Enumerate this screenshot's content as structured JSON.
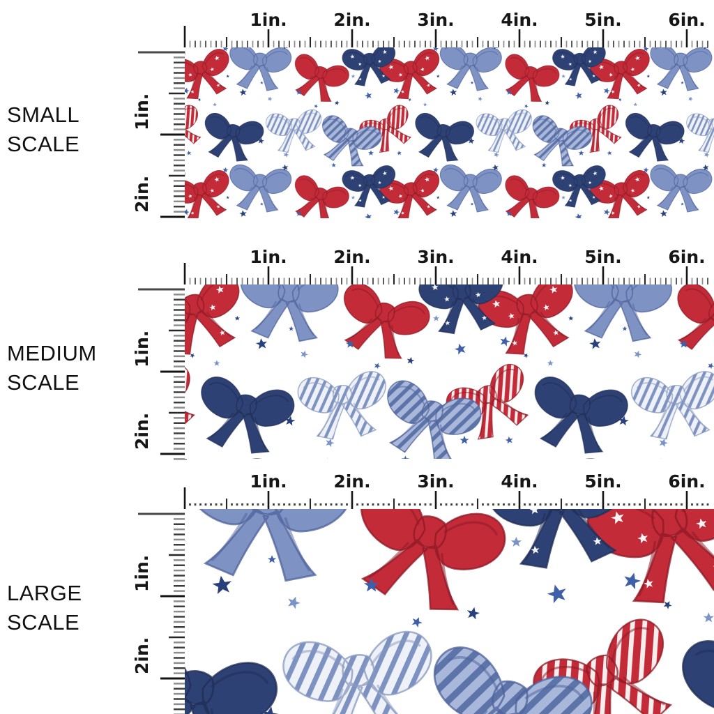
{
  "page": {
    "background": "#ffffff",
    "description": "Fabric pattern scale comparison chart with three swatches of a patriotic bows-and-stars print shown at small, medium and large scale with inch rulers"
  },
  "panels": [
    {
      "id": "small-scale",
      "label_line1": "SMALL",
      "label_line2": "SCALE"
    },
    {
      "id": "medium-scale",
      "label_line1": "MEDIUM",
      "label_line2": "SCALE"
    },
    {
      "id": "large-scale",
      "label_line1": "LARGE",
      "label_line2": "SCALE"
    }
  ],
  "ruler": {
    "horizontal_labels": [
      "1in.",
      "2in.",
      "3in.",
      "4in.",
      "5in.",
      "6in."
    ],
    "vertical_labels": [
      "1in.",
      "2in."
    ],
    "major_color": "#141414",
    "minor_color": "#3d3d3d",
    "alt_minor_color": "#8d8d8d",
    "cap_color": "#474747"
  },
  "pattern": {
    "name": "red-white-blue-watercolor-bows-and-stars",
    "motifs": [
      "red bow with white stars",
      "solid red bow",
      "red striped bow",
      "solid periwinkle blue bow",
      "blue striped bow",
      "navy bow",
      "navy bow with white stars",
      "white bow with blue stripes",
      "scattered blue stars"
    ],
    "colors": {
      "swatch_background": "#ffffff",
      "red": "#c32b38",
      "red_dark": "#8c1723",
      "red_stripe": "#f6eeee",
      "blue": "#7e92c4",
      "blue_light": "#a9b7da",
      "blue_dark": "#4d619b",
      "blue_stripe": "#5d74a8",
      "navy": "#2e4175",
      "navy_dark": "#1e2d55",
      "white_bow": "#eef1f7",
      "white_bow_stripe": "#7d92c0",
      "white_bow_outline": "#8798bf",
      "star_blue": "#3f5fa8",
      "star_navy": "#27407c",
      "star_light": "#7b93c6",
      "deco_star": "#ffffff"
    }
  }
}
